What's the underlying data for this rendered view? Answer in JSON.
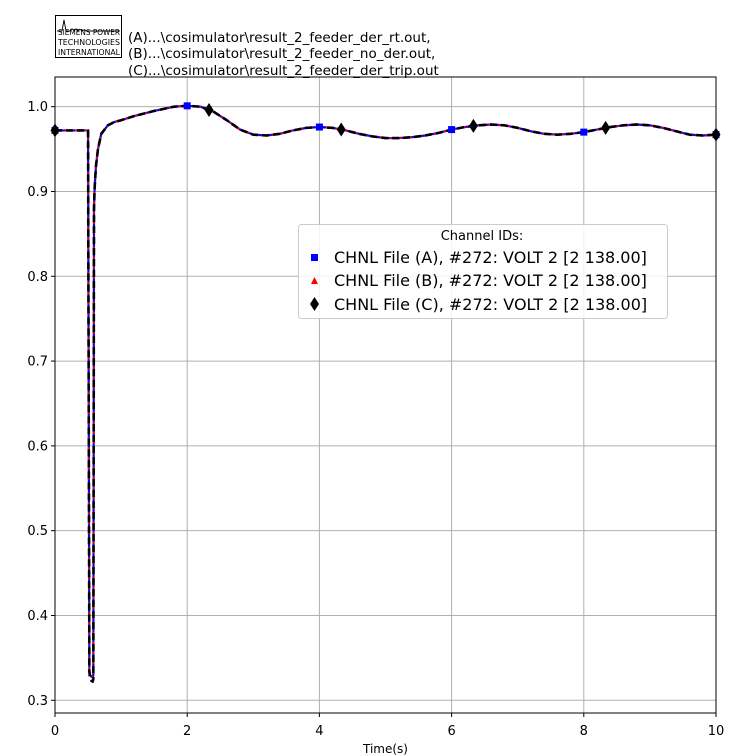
{
  "logo": {
    "lines": [
      "SIEMENS POWER",
      "TECHNOLOGIES",
      "INTERNATIONAL"
    ]
  },
  "file_labels": [
    "(A)...\\cosimulator\\result_2_feeder_der_rt.out,",
    "(B)...\\cosimulator\\result_2_feeder_no_der.out,",
    "(C)...\\cosimulator\\result_2_feeder_der_trip.out"
  ],
  "chart_data": {
    "type": "line",
    "xlabel": "Time(s)",
    "ylabel": "",
    "xlim": [
      0,
      10
    ],
    "ylim": [
      0.285,
      1.035
    ],
    "xticks": [
      0,
      2,
      4,
      6,
      8,
      10
    ],
    "yticks": [
      0.3,
      0.4,
      0.5,
      0.6,
      0.7,
      0.8,
      0.9,
      1.0
    ],
    "grid": true,
    "legend": {
      "title": "Channel IDs:",
      "placement": "center-right"
    },
    "x": [
      0,
      0.5,
      0.52,
      0.53,
      0.55,
      0.57,
      0.58,
      0.59,
      0.6,
      0.62,
      0.65,
      0.7,
      0.8,
      0.9,
      1.0,
      1.2,
      1.5,
      1.8,
      2.0,
      2.2,
      2.4,
      2.6,
      2.8,
      3.0,
      3.2,
      3.4,
      3.6,
      3.8,
      4.0,
      4.2,
      4.4,
      4.6,
      4.8,
      5.0,
      5.2,
      5.4,
      5.6,
      5.8,
      6.0,
      6.2,
      6.4,
      6.6,
      6.8,
      7.0,
      7.2,
      7.4,
      7.6,
      7.8,
      8.0,
      8.2,
      8.4,
      8.6,
      8.8,
      9.0,
      9.2,
      9.4,
      9.6,
      9.8,
      10.0
    ],
    "series": [
      {
        "name": "CHNL File (A), #272: VOLT 2 [2 138.00]",
        "color": "#0000ff",
        "marker": "square",
        "line_style": "solid",
        "values": [
          0.972,
          0.972,
          0.334,
          0.33,
          0.328,
          0.327,
          0.33,
          0.88,
          0.905,
          0.93,
          0.95,
          0.968,
          0.978,
          0.982,
          0.984,
          0.989,
          0.995,
          1.0,
          1.001,
          1.0,
          0.994,
          0.984,
          0.973,
          0.967,
          0.966,
          0.968,
          0.972,
          0.975,
          0.976,
          0.975,
          0.972,
          0.968,
          0.965,
          0.963,
          0.963,
          0.964,
          0.966,
          0.969,
          0.973,
          0.976,
          0.978,
          0.979,
          0.978,
          0.975,
          0.971,
          0.968,
          0.967,
          0.968,
          0.97,
          0.973,
          0.976,
          0.978,
          0.979,
          0.978,
          0.975,
          0.971,
          0.967,
          0.966,
          0.967
        ],
        "marker_x": [
          0,
          2,
          4,
          6,
          8,
          10
        ]
      },
      {
        "name": "CHNL File (B), #272: VOLT 2 [2 138.00]",
        "color": "#ff0000",
        "marker": "triangle",
        "line_style": "dotted",
        "values": [
          0.972,
          0.972,
          0.334,
          0.33,
          0.328,
          0.327,
          0.33,
          0.88,
          0.905,
          0.93,
          0.95,
          0.968,
          0.978,
          0.982,
          0.984,
          0.989,
          0.995,
          1.0,
          1.001,
          1.0,
          0.994,
          0.984,
          0.973,
          0.967,
          0.966,
          0.968,
          0.972,
          0.975,
          0.976,
          0.975,
          0.972,
          0.968,
          0.965,
          0.963,
          0.963,
          0.964,
          0.966,
          0.969,
          0.973,
          0.976,
          0.978,
          0.979,
          0.978,
          0.975,
          0.971,
          0.968,
          0.967,
          0.968,
          0.97,
          0.973,
          0.976,
          0.978,
          0.979,
          0.978,
          0.975,
          0.971,
          0.967,
          0.966,
          0.967
        ],
        "marker_x": []
      },
      {
        "name": "CHNL File (C), #272: VOLT 2 [2 138.00]",
        "color": "#000000",
        "marker": "diamond",
        "line_style": "dashed",
        "values": [
          0.972,
          0.972,
          0.334,
          0.325,
          0.323,
          0.322,
          0.325,
          0.88,
          0.905,
          0.93,
          0.95,
          0.968,
          0.978,
          0.982,
          0.984,
          0.989,
          0.995,
          1.0,
          1.001,
          1.0,
          0.994,
          0.984,
          0.973,
          0.967,
          0.966,
          0.968,
          0.972,
          0.975,
          0.976,
          0.975,
          0.972,
          0.968,
          0.965,
          0.963,
          0.963,
          0.964,
          0.966,
          0.969,
          0.973,
          0.976,
          0.978,
          0.979,
          0.978,
          0.975,
          0.971,
          0.968,
          0.967,
          0.968,
          0.97,
          0.973,
          0.976,
          0.978,
          0.979,
          0.978,
          0.975,
          0.971,
          0.967,
          0.966,
          0.967
        ],
        "marker_x": [
          0,
          2.33,
          4.33,
          6.33,
          8.33,
          10
        ]
      }
    ]
  }
}
